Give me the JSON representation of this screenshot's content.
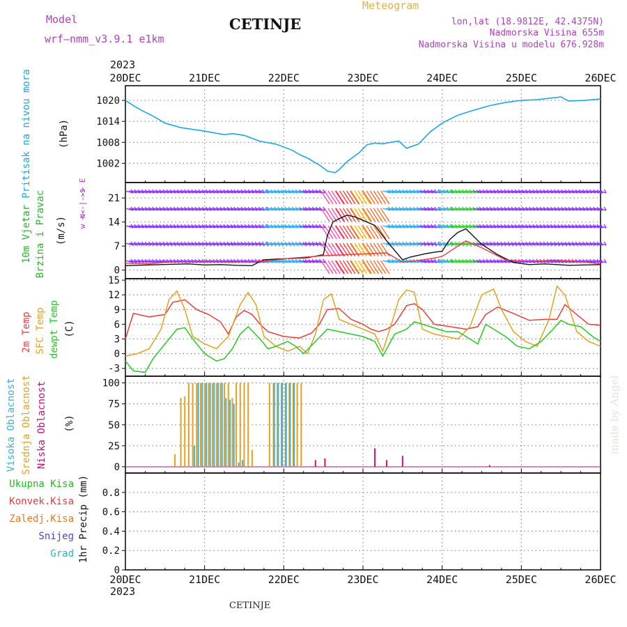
{
  "header": {
    "model_label": "Model",
    "model_name": "wrf—nmm_v3.9.1  e1km",
    "station_title": "CETINJE",
    "meteogram_label": "Meteogram",
    "lonlat": "lon,lat (18.9812E, 42.4375N)",
    "altitude": "Nadmorska Visina 655m",
    "model_altitude": "Nadmorska Visina u modelu 676.928m",
    "year_top": "2023",
    "year_bottom": "2023",
    "footer_station": "CETINJE",
    "watermark": "made by Angel"
  },
  "colors": {
    "pressure": "#1aa8e6",
    "t2m": "#ee3b3b",
    "sfc": "#e6a020",
    "dew": "#22cc22",
    "high_cloud": "#3ab0d8",
    "mid_cloud": "#e6a020",
    "low_cloud": "#cc1177",
    "total_precip": "#22bb22",
    "convective_precip": "#ee3b3b",
    "freezing_precip": "#ee7722",
    "snow": "#4444ee",
    "graupel": "#22bbbb",
    "header_purple": "#b040c0",
    "meteogram_gold": "#e6b040",
    "grid": "#888888"
  },
  "chart_data": [
    {
      "type": "line",
      "id": "pressure",
      "panel_title": "Pritisak na nivou mora",
      "ylabel": "(hPa)",
      "ylim": [
        996.5,
        1024.2
      ],
      "yticks": [
        1002,
        1008,
        1014,
        1020
      ],
      "x_ticks": [
        "20DEC",
        "21DEC",
        "22DEC",
        "23DEC",
        "24DEC",
        "25DEC",
        "26DEC"
      ],
      "x_unit": "days after 20DEC 00Z",
      "grid": true,
      "series": [
        {
          "color_key": "pressure",
          "x": [
            0,
            0.1,
            0.2,
            0.35,
            0.5,
            0.7,
            1.0,
            1.25,
            1.35,
            1.5,
            1.7,
            1.9,
            2.1,
            2.2,
            2.3,
            2.45,
            2.55,
            2.65,
            2.7,
            2.8,
            2.95,
            3.05,
            3.15,
            3.25,
            3.35,
            3.45,
            3.55,
            3.7,
            3.85,
            4.0,
            4.2,
            4.4,
            4.6,
            4.8,
            5.0,
            5.2,
            5.35,
            5.5,
            5.6,
            5.8,
            6.0
          ],
          "y": [
            1020,
            1018.5,
            1017.2,
            1015.5,
            1013.5,
            1012.2,
            1011.2,
            1010.2,
            1010.5,
            1010,
            1008.3,
            1007.5,
            1005.8,
            1004.5,
            1003.5,
            1001.5,
            999.8,
            999.3,
            1000.2,
            1002.5,
            1005,
            1007.3,
            1007.8,
            1007.6,
            1008,
            1008.4,
            1006.3,
            1007.5,
            1011,
            1013.5,
            1015.8,
            1017.2,
            1018.5,
            1019.4,
            1020,
            1020.2,
            1020.6,
            1021,
            1019.8,
            1020,
            1020.4
          ]
        }
      ]
    },
    {
      "type": "line",
      "id": "wind",
      "panel_title": "10m Vjetar Brzina i Pravac",
      "ylabel": "(m/s)",
      "compass_label": "w <--|--> E",
      "compass_sub": "N<-|->S",
      "ylim": [
        -2.5,
        25.5
      ],
      "yticks": [
        0,
        7,
        14,
        21
      ],
      "x_ticks": [
        "20DEC",
        "21DEC",
        "22DEC",
        "23DEC",
        "24DEC",
        "25DEC",
        "26DEC"
      ],
      "x_unit": "days after 20DEC 00Z",
      "grid": true,
      "series": [
        {
          "name": "speed",
          "color": "#111111",
          "x": [
            0,
            0.3,
            0.6,
            0.8,
            1.0,
            1.2,
            1.4,
            1.6,
            1.7,
            1.75,
            1.9,
            2.1,
            2.3,
            2.5,
            2.55,
            2.62,
            2.7,
            2.8,
            2.9,
            3.0,
            3.15,
            3.3,
            3.5,
            3.6,
            3.8,
            3.9,
            4.0,
            4.1,
            4.2,
            4.3,
            4.5,
            4.7,
            4.9,
            5.1,
            5.3,
            5.6,
            6.0
          ],
          "y": [
            1.3,
            1.5,
            1.7,
            1.8,
            1.5,
            1.6,
            1.4,
            1.3,
            2.5,
            3.0,
            3.2,
            3.4,
            3.6,
            4.5,
            10,
            14,
            15,
            16,
            15.5,
            14.5,
            13,
            8.5,
            3.0,
            3.8,
            4.8,
            5.2,
            5.5,
            9,
            11,
            12,
            7.5,
            4.5,
            2.2,
            1.6,
            1.8,
            1.4,
            1.6
          ]
        },
        {
          "name": "gust",
          "color": "#ee3b3b",
          "x": [
            0,
            0.3,
            0.6,
            0.8,
            1.0,
            1.3,
            1.6,
            1.8,
            2.1,
            2.4,
            2.5,
            3.3,
            3.5,
            3.7,
            3.9,
            4.0,
            4.3,
            4.5,
            4.8,
            5.1,
            5.4,
            5.7,
            6.0
          ],
          "y": [
            2.0,
            1.8,
            2.5,
            2.4,
            2.6,
            2.3,
            2.5,
            2.7,
            3.5,
            4.0,
            4.2,
            5.0,
            2.3,
            2.8,
            3.5,
            4.0,
            8.5,
            6.5,
            3.0,
            2.4,
            2.9,
            2.6,
            1.8
          ]
        }
      ],
      "barb_color_bands": [
        {
          "x0": 0.0,
          "x1": 1.3,
          "color": "#8833ff"
        },
        {
          "x0": 1.3,
          "x1": 1.72,
          "color": "#8833ff"
        },
        {
          "x0": 1.72,
          "x1": 2.2,
          "color": "#33aaee"
        },
        {
          "x0": 2.2,
          "x1": 2.47,
          "color": "#8833ff"
        },
        {
          "x0": 2.47,
          "x1": 2.66,
          "color": "#ff44aa"
        },
        {
          "x0": 2.66,
          "x1": 2.85,
          "color": "#ff3333"
        },
        {
          "x0": 2.85,
          "x1": 3.0,
          "color": "#ffaa00"
        },
        {
          "x0": 3.0,
          "x1": 3.25,
          "color": "#ff6622"
        },
        {
          "x0": 3.25,
          "x1": 3.7,
          "color": "#33aaee"
        },
        {
          "x0": 3.7,
          "x1": 3.9,
          "color": "#8833ff"
        },
        {
          "x0": 3.9,
          "x1": 4.05,
          "color": "#33aaee"
        },
        {
          "x0": 4.05,
          "x1": 4.4,
          "color": "#33cc33"
        },
        {
          "x0": 4.4,
          "x1": 6.0,
          "color": "#8833ff"
        }
      ]
    },
    {
      "type": "line",
      "id": "temperature",
      "panel_title_lines": [
        "2m Temp",
        "SFC Temp",
        "dewpt Temp"
      ],
      "ylabel": "(C)",
      "ylim": [
        -4.6,
        15.3
      ],
      "yticks": [
        -3,
        0,
        3,
        6,
        9,
        12,
        15
      ],
      "x_ticks": [
        "20DEC",
        "21DEC",
        "22DEC",
        "23DEC",
        "24DEC",
        "25DEC",
        "26DEC"
      ],
      "x_unit": "days after 20DEC 00Z",
      "grid": true,
      "series": [
        {
          "name": "2m Temp",
          "color_key": "t2m",
          "x": [
            0,
            0.1,
            0.3,
            0.5,
            0.6,
            0.75,
            0.9,
            1.05,
            1.2,
            1.3,
            1.4,
            1.5,
            1.6,
            1.7,
            1.8,
            2.0,
            2.2,
            2.35,
            2.45,
            2.55,
            2.7,
            2.85,
            3.0,
            3.1,
            3.2,
            3.3,
            3.4,
            3.55,
            3.65,
            3.75,
            3.9,
            4.1,
            4.3,
            4.45,
            4.55,
            4.7,
            4.9,
            5.1,
            5.3,
            5.45,
            5.55,
            5.7,
            5.85,
            6.0
          ],
          "y": [
            3.0,
            8.2,
            7.5,
            8.0,
            10.5,
            11.0,
            9.0,
            8.0,
            6.5,
            4.0,
            7.5,
            8.8,
            8.0,
            6.0,
            4.5,
            3.5,
            3.2,
            4.2,
            6.0,
            9.0,
            9.2,
            7.0,
            6.0,
            5.0,
            4.5,
            5.0,
            6.0,
            9.8,
            10.2,
            9.0,
            6.0,
            5.5,
            5.0,
            5.5,
            8.0,
            9.5,
            8.2,
            6.8,
            7.0,
            7.0,
            10.0,
            8.0,
            6.0,
            5.8
          ]
        },
        {
          "name": "SFC Temp",
          "color_key": "sfc",
          "x": [
            0,
            0.15,
            0.3,
            0.45,
            0.55,
            0.65,
            0.75,
            0.85,
            1.0,
            1.15,
            1.3,
            1.45,
            1.55,
            1.65,
            1.75,
            1.9,
            2.05,
            2.2,
            2.3,
            2.4,
            2.5,
            2.6,
            2.7,
            2.85,
            3.0,
            3.15,
            3.25,
            3.35,
            3.45,
            3.55,
            3.65,
            3.75,
            3.9,
            4.05,
            4.2,
            4.35,
            4.5,
            4.65,
            4.75,
            4.9,
            5.05,
            5.2,
            5.35,
            5.45,
            5.55,
            5.7,
            5.85,
            6.0
          ],
          "y": [
            -0.5,
            0.0,
            1.0,
            5.0,
            11.0,
            12.8,
            9.0,
            3.5,
            2.0,
            1.0,
            3.5,
            10.0,
            12.5,
            10.0,
            3.5,
            1.5,
            0.5,
            1.5,
            0.0,
            4.0,
            11.0,
            12.2,
            7.0,
            6.0,
            5.0,
            4.0,
            0.5,
            5.5,
            11.0,
            13.0,
            12.5,
            5.0,
            4.0,
            3.5,
            3.0,
            5.5,
            12.0,
            13.2,
            9.0,
            4.5,
            2.5,
            1.5,
            7.0,
            13.8,
            12.0,
            4.5,
            2.5,
            1.5
          ]
        },
        {
          "name": "dewpt Temp",
          "color_key": "dew",
          "x": [
            0,
            0.1,
            0.25,
            0.35,
            0.5,
            0.65,
            0.75,
            0.85,
            1.0,
            1.15,
            1.25,
            1.35,
            1.45,
            1.55,
            1.7,
            1.8,
            1.9,
            2.05,
            2.15,
            2.25,
            2.4,
            2.55,
            2.7,
            2.85,
            3.0,
            3.15,
            3.25,
            3.4,
            3.55,
            3.65,
            3.75,
            3.85,
            4.05,
            4.2,
            4.3,
            4.45,
            4.55,
            4.65,
            4.8,
            4.95,
            5.1,
            5.25,
            5.4,
            5.5,
            5.6,
            5.75,
            5.9,
            6.0
          ],
          "y": [
            -1.5,
            -3.5,
            -3.8,
            -1.0,
            2.0,
            5.0,
            5.3,
            3.0,
            0.0,
            -1.5,
            -1.0,
            1.0,
            4.0,
            5.5,
            3.0,
            1.0,
            1.5,
            2.5,
            1.5,
            0.0,
            2.5,
            5.0,
            4.5,
            4.0,
            3.5,
            2.5,
            -0.5,
            4.0,
            5.0,
            6.5,
            6.0,
            5.5,
            4.5,
            4.5,
            3.5,
            2.0,
            6.0,
            5.0,
            3.5,
            1.5,
            1.0,
            2.5,
            5.0,
            6.8,
            6.0,
            5.5,
            3.5,
            2.5
          ]
        }
      ]
    },
    {
      "type": "bar",
      "id": "clouds",
      "panel_title_lines": [
        "Visoka Oblacnost",
        "Srednja Oblacnost",
        "Niska Oblacnost"
      ],
      "ylabel": "(%)",
      "ylim": [
        -7.5,
        108
      ],
      "yticks": [
        0,
        25,
        50,
        75,
        100
      ],
      "x_ticks": [
        "20DEC",
        "21DEC",
        "22DEC",
        "23DEC",
        "24DEC",
        "25DEC",
        "26DEC"
      ],
      "x_unit": "days after 20DEC 00Z",
      "grid": true,
      "series": [
        {
          "name": "Srednja Oblacnost",
          "color_key": "mid_cloud",
          "x": [
            0.625,
            0.7,
            0.75,
            0.8,
            0.85,
            0.9,
            0.95,
            1.0,
            1.05,
            1.1,
            1.15,
            1.2,
            1.25,
            1.3,
            1.35,
            1.4,
            1.45,
            1.5,
            1.55,
            1.6,
            1.82,
            1.87,
            1.92,
            1.97,
            2.02,
            2.07,
            2.12,
            2.17,
            2.22
          ],
          "values": [
            15,
            82,
            84,
            100,
            100,
            100,
            100,
            100,
            100,
            100,
            100,
            100,
            100,
            100,
            82,
            100,
            100,
            100,
            100,
            20,
            100,
            100,
            100,
            100,
            100,
            100,
            100,
            100,
            100
          ]
        },
        {
          "name": "Visoka Oblacnost",
          "color_key": "high_cloud",
          "x": [
            0.87,
            0.92,
            0.97,
            1.02,
            1.07,
            1.12,
            1.17,
            1.22,
            1.27,
            1.32,
            1.37,
            1.43,
            1.48,
            1.88,
            1.93,
            1.98,
            2.03,
            2.08,
            2.13
          ],
          "values": [
            25,
            100,
            100,
            100,
            100,
            100,
            100,
            100,
            82,
            80,
            75,
            5,
            8,
            100,
            100,
            100,
            100,
            100,
            100
          ]
        },
        {
          "name": "Niska Oblacnost",
          "color_key": "low_cloud",
          "x": [
            2.4,
            2.52,
            3.15,
            3.3,
            3.5,
            4.6
          ],
          "values": [
            8,
            10,
            22,
            8,
            13,
            2
          ]
        }
      ]
    },
    {
      "type": "bar",
      "id": "precip",
      "panel_title_lines": [
        "Ukupna Kisa",
        "Konvek.Kisa",
        "Zaledj.Kisa",
        "Snijeg",
        "Grad"
      ],
      "ylabel": "1hr Precip (mm)",
      "ylim": [
        0,
        1
      ],
      "yticks": [
        "0",
        "0.2",
        "0.4",
        "0.6",
        "0.8"
      ],
      "x_ticks": [
        "20DEC",
        "21DEC",
        "22DEC",
        "23DEC",
        "24DEC",
        "25DEC",
        "26DEC"
      ],
      "x_unit": "days after 20DEC 00Z",
      "grid": true,
      "series": []
    }
  ]
}
